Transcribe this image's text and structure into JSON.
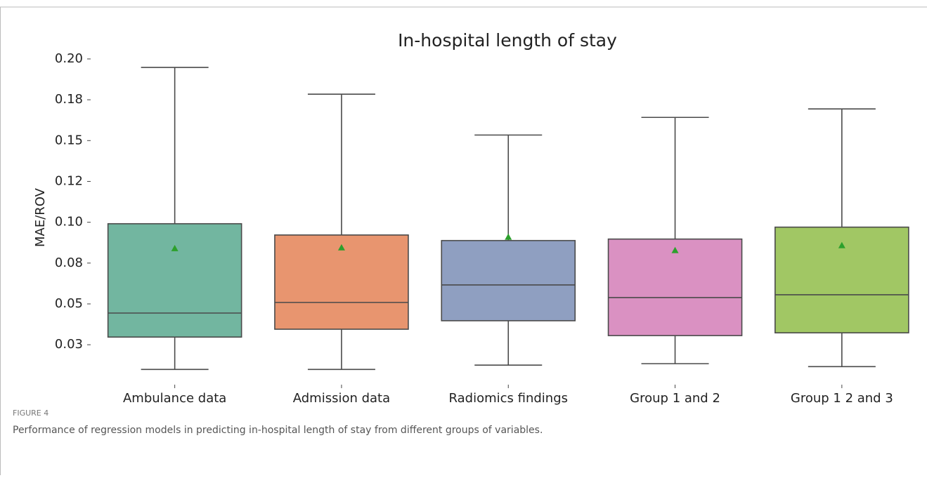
{
  "chart_data": {
    "type": "box",
    "title": "In-hospital length of stay",
    "ylabel": "MAE/ROV",
    "categories": [
      "Ambulance data",
      "Admission data",
      "Radiomics  findings",
      "Group 1 and 2",
      "Group 1 2 and 3"
    ],
    "colors": [
      "#72b6a0",
      "#e8956f",
      "#8f9fc1",
      "#da91c2",
      "#a1c764"
    ],
    "mean_color": "#2ca02c",
    "boxes": [
      {
        "min": 0.0099,
        "q1": 0.0297,
        "median": 0.0444,
        "q3": 0.0991,
        "max": 0.1948,
        "mean": 0.084
      },
      {
        "min": 0.0099,
        "q1": 0.0345,
        "median": 0.0509,
        "q3": 0.0922,
        "max": 0.1784,
        "mean": 0.0845
      },
      {
        "min": 0.0125,
        "q1": 0.0397,
        "median": 0.0616,
        "q3": 0.0888,
        "max": 0.1534,
        "mean": 0.091
      },
      {
        "min": 0.0134,
        "q1": 0.0306,
        "median": 0.0539,
        "q3": 0.0897,
        "max": 0.1642,
        "mean": 0.0828
      },
      {
        "min": 0.0116,
        "q1": 0.0323,
        "median": 0.0556,
        "q3": 0.097,
        "max": 0.1694,
        "mean": 0.0858
      }
    ],
    "ylim": [
      0.004,
      0.206
    ],
    "yticks": [
      {
        "value": 0.025,
        "label": "0.03"
      },
      0.05,
      {
        "value": 0.075,
        "label": "0.08"
      },
      {
        "value": 0.1,
        "label": "0.10"
      },
      {
        "value": 0.125,
        "label": "0.12"
      },
      {
        "value": 0.15,
        "label": "0.15"
      },
      {
        "value": 0.175,
        "label": "0.18"
      },
      {
        "value": 0.2,
        "label": "0.20"
      }
    ]
  },
  "caption": {
    "label": "FIGURE 4",
    "text": "Performance of regression models in predicting in-hospital length of stay from different groups of variables."
  }
}
